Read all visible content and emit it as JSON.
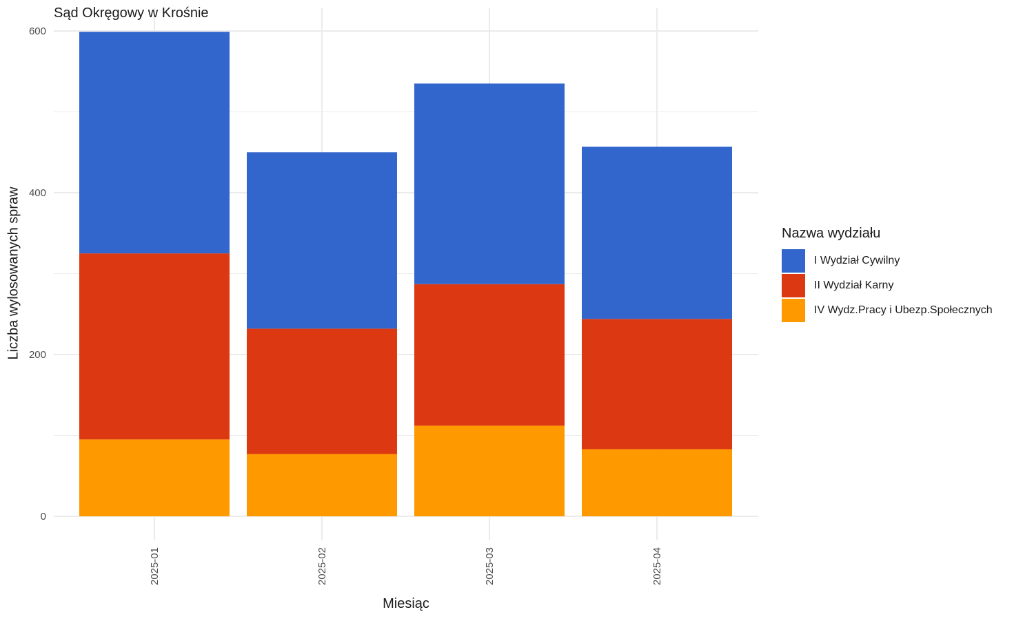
{
  "chart_data": {
    "type": "bar",
    "stacked": true,
    "title": "Sąd Okręgowy w Krośnie",
    "xlabel": "Miesiąc",
    "ylabel": "Liczba wylosowanych spraw",
    "categories": [
      "2025-01",
      "2025-02",
      "2025-03",
      "2025-04"
    ],
    "ylim": [
      0,
      600
    ],
    "yticks": [
      0,
      200,
      400,
      600
    ],
    "grid": true,
    "legend": {
      "title": "Nazwa wydziału",
      "placement": "right"
    },
    "series": [
      {
        "name": "IV Wydz.Pracy i Ubezp.Społecznych",
        "values": [
          95,
          77,
          112,
          83
        ],
        "color": "#ff9900"
      },
      {
        "name": "II Wydział Karny",
        "values": [
          230,
          155,
          175,
          161
        ],
        "color": "#dc3912"
      },
      {
        "name": "I Wydział Cywilny",
        "values": [
          274,
          218,
          248,
          213
        ],
        "color": "#3366cc"
      }
    ]
  }
}
